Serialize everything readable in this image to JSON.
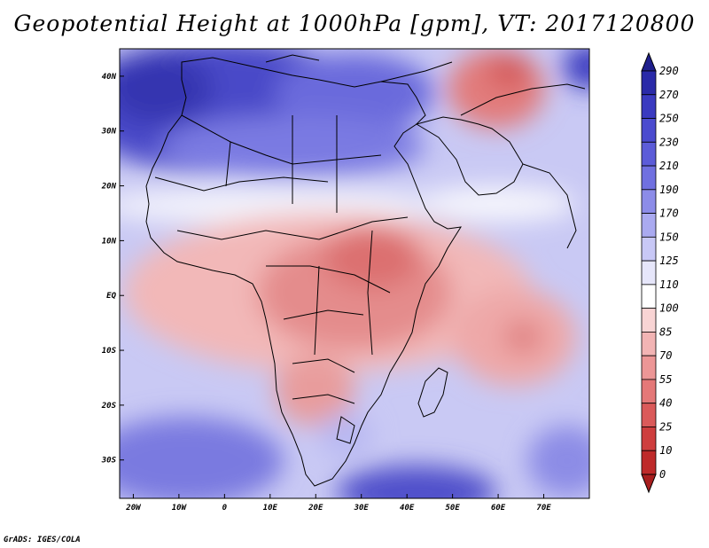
{
  "title": "Geopotential Height at 1000hPa [gpm], VT: 2017120800",
  "credit": "GrADS: IGES/COLA",
  "colors": {
    "ocean_high": "#6E6EE0",
    "ocean_mid": "#B8B8F2",
    "neutral": "#F4F4FA",
    "land_low": "#F0A0A0",
    "land_lower": "#E27C7C",
    "coast": "#000000"
  },
  "map": {
    "lon_range": [
      -23,
      80
    ],
    "lat_range": [
      -37,
      45
    ],
    "x_ticks": [
      "20W",
      "10W",
      "0",
      "10E",
      "20E",
      "30E",
      "40E",
      "50E",
      "60E",
      "70E"
    ],
    "y_ticks": [
      "40N",
      "30N",
      "20N",
      "10N",
      "EQ",
      "10S",
      "20S",
      "30S"
    ]
  },
  "colorbar": {
    "labels": [
      "290",
      "270",
      "250",
      "230",
      "210",
      "190",
      "170",
      "150",
      "125",
      "110",
      "100",
      "85",
      "70",
      "55",
      "40",
      "25",
      "10",
      "0"
    ],
    "colors": [
      "#1F1F8C",
      "#2A2AA8",
      "#3A3AC0",
      "#4B4BCF",
      "#5C5CD8",
      "#7070E0",
      "#8C8CE8",
      "#AAAAF0",
      "#C8C8F6",
      "#E6E6FA",
      "#FFFFFF",
      "#F8D4D4",
      "#F2B4B4",
      "#EC9696",
      "#E47878",
      "#DA5A5A",
      "#CE3E3E",
      "#BE2A2A",
      "#A81E1E"
    ]
  }
}
